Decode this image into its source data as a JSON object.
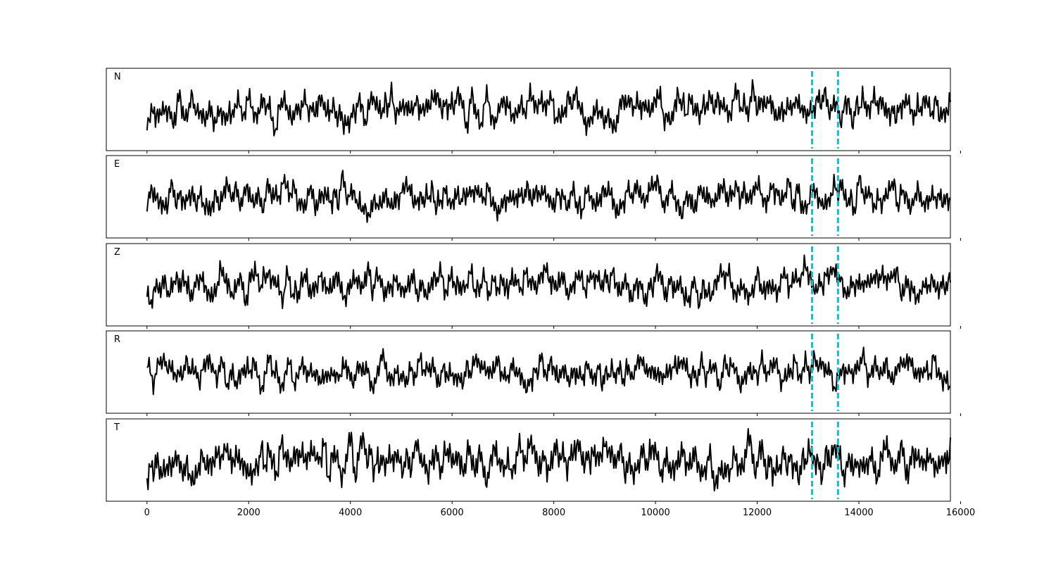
{
  "chart_data": {
    "type": "line",
    "layout": "stacked-panels",
    "xlim": [
      -800,
      15800
    ],
    "x_ticks": [
      0,
      2000,
      4000,
      6000,
      8000,
      10000,
      12000,
      14000,
      16000
    ],
    "x_tick_labels": [
      "0",
      "2000",
      "4000",
      "6000",
      "8000",
      "10000",
      "12000",
      "14000",
      "16000"
    ],
    "x_range": [
      0,
      15800
    ],
    "grid": false,
    "line_color": "#000000",
    "marker_color": "#17becf",
    "markers": [
      13080,
      13590
    ],
    "series": [
      {
        "name": "N",
        "seed": 11,
        "amplitude": 0.36
      },
      {
        "name": "E",
        "seed": 23,
        "amplitude": 0.32
      },
      {
        "name": "Z",
        "seed": 37,
        "amplitude": 0.36
      },
      {
        "name": "R",
        "seed": 41,
        "amplitude": 0.3
      },
      {
        "name": "T",
        "seed": 53,
        "amplitude": 0.38
      }
    ]
  }
}
